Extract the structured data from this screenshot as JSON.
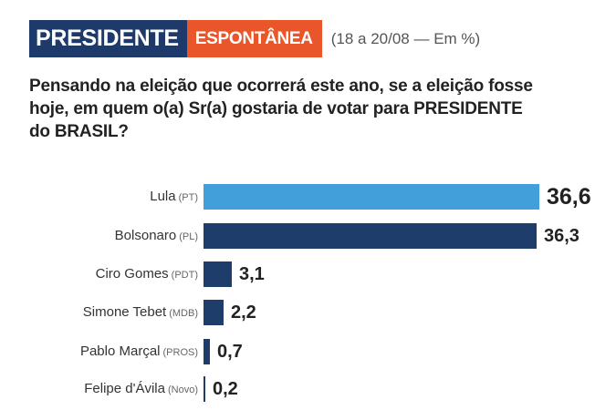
{
  "header": {
    "tag_main": "PRESIDENTE",
    "tag_sub": "ESPONTÂNEA",
    "meta": "(18 a 20/08 — Em %)"
  },
  "question": "Pensando na eleição que ocorrerá este ano, se a eleição fosse hoje, em quem o(a) Sr(a) gostaria de votar para PRESIDENTE do BRASIL?",
  "colors": {
    "header_main": "#1e3a6b",
    "header_sub": "#e8562a",
    "bar_highlight": "#439fd9",
    "bar_default": "#1e3d6b"
  },
  "chart_data": {
    "type": "bar",
    "orientation": "horizontal",
    "title": "PRESIDENTE ESPONTÂNEA (18 a 20/08 — Em %)",
    "subtitle": "Pensando na eleição que ocorrerá este ano, se a eleição fosse hoje, em quem o(a) Sr(a) gostaria de votar para PRESIDENTE do BRASIL?",
    "xlabel": "",
    "ylabel": "",
    "unit": "%",
    "grid": false,
    "legend": null,
    "categories": [
      "Lula (PT)",
      "Bolsonaro (PL)",
      "Ciro Gomes (PDT)",
      "Simone Tebet (MDB)",
      "Pablo Marçal (PROS)",
      "Felipe d'Ávila (Novo)"
    ],
    "values": [
      36.6,
      36.3,
      3.1,
      2.2,
      0.7,
      0.2
    ],
    "value_labels": [
      "36,6",
      "36,3",
      "3,1",
      "2,2",
      "0,7",
      "0,2"
    ],
    "rows": [
      {
        "name": "Lula",
        "party": "(PT)",
        "value": 36.6,
        "label": "36,6",
        "highlight": true
      },
      {
        "name": "Bolsonaro",
        "party": "(PL)",
        "value": 36.3,
        "label": "36,3",
        "highlight": false
      },
      {
        "name": "Ciro Gomes",
        "party": "(PDT)",
        "value": 3.1,
        "label": "3,1",
        "highlight": false
      },
      {
        "name": "Simone Tebet",
        "party": "(MDB)",
        "value": 2.2,
        "label": "2,2",
        "highlight": false
      },
      {
        "name": "Pablo Marçal",
        "party": "(PROS)",
        "value": 0.7,
        "label": "0,7",
        "highlight": false
      },
      {
        "name": "Felipe d'Ávila",
        "party": "(Novo)",
        "value": 0.2,
        "label": "0,2",
        "highlight": false
      }
    ]
  }
}
